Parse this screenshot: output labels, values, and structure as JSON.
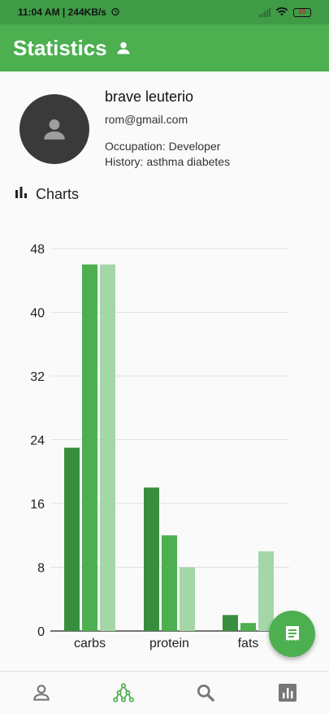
{
  "status_bar": {
    "time_speed": "11:04 AM | 244KB/s",
    "battery": "20"
  },
  "app_bar": {
    "title": "Statistics",
    "title_icon": "person-icon"
  },
  "profile": {
    "name": "brave leuterio",
    "email": "rom@gmail.com",
    "occupation": "Occupation: Developer",
    "history": "History: asthma diabetes",
    "avatar_icon": "person-icon"
  },
  "charts_section": {
    "label": "Charts",
    "icon": "bar-chart-icon"
  },
  "chart_data": {
    "type": "bar",
    "categories": [
      "carbs",
      "protein",
      "fats"
    ],
    "series": [
      {
        "color": "#388e3c",
        "values": [
          23,
          18,
          2
        ]
      },
      {
        "color": "#4caf50",
        "values": [
          46,
          12,
          1
        ]
      },
      {
        "color": "#a5d6a7",
        "values": [
          46,
          8,
          10
        ]
      }
    ],
    "yticks": [
      0,
      8,
      16,
      24,
      32,
      40,
      48
    ],
    "ylim": [
      0,
      48
    ],
    "grid": true
  },
  "fab": {
    "icon": "document-icon"
  },
  "bottom_nav": {
    "items": [
      {
        "icon": "person-outline-icon",
        "active": false
      },
      {
        "icon": "network-icon",
        "active": true
      },
      {
        "icon": "search-icon",
        "active": false
      },
      {
        "icon": "stats-icon",
        "active": false
      }
    ],
    "active_color": "#4caf50",
    "inactive_color": "#777777"
  }
}
